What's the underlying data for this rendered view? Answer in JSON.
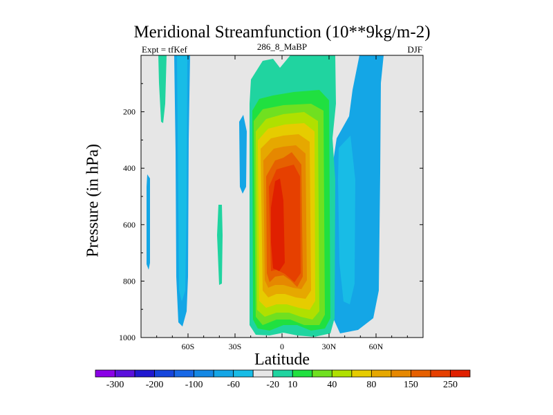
{
  "chart_data": {
    "type": "contour",
    "title": "Meridional Streamfunction (10**9kg/m-2)",
    "left_label": "Expt = tfKef",
    "center_label": "286_8_MaBP",
    "right_label": "DJF",
    "xlabel": "Latitude",
    "ylabel": "Pressure (in hPa)",
    "x_range": [
      -90,
      90
    ],
    "y_range": [
      1000,
      0
    ],
    "y_ticks": [
      "200",
      "400",
      "600",
      "800",
      "1000"
    ],
    "y_tick_values": [
      200,
      400,
      600,
      800,
      1000
    ],
    "x_ticks": [
      "60S",
      "30S",
      "0",
      "30N",
      "60N"
    ],
    "x_tick_values": [
      -60,
      -30,
      0,
      30,
      60
    ],
    "colorbar_labels": [
      "-300",
      "-200",
      "-100",
      "-60",
      "-20",
      "10",
      "40",
      "80",
      "150",
      "250"
    ],
    "colorbar_colors": [
      "#8a00e6",
      "#5a10dc",
      "#2018d0",
      "#1545dc",
      "#1868e6",
      "#1488e4",
      "#14a6e6",
      "#18bce6",
      "#e6e6e6",
      "#20d4a0",
      "#20e040",
      "#70e020",
      "#b0e000",
      "#e6cc00",
      "#e6a800",
      "#e68800",
      "#e66000",
      "#e64000",
      "#e02000"
    ],
    "background_color": "#e6e6e6",
    "grid": false,
    "features": [
      {
        "name": "nh-hadley-cell",
        "sign": "positive",
        "lat_range": [
          -12,
          22
        ],
        "pressure_range": [
          20,
          1000
        ],
        "peak": "250+",
        "peak_lat": -4,
        "peak_pressure": 600
      },
      {
        "name": "sh-ferrel-cell",
        "sign": "negative",
        "lat_range": [
          -67,
          -57
        ],
        "pressure_range": [
          0,
          970
        ],
        "peak": "-60"
      },
      {
        "name": "nh-ferrel-cell",
        "sign": "negative",
        "lat_range": [
          31,
          52
        ],
        "pressure_range": [
          0,
          980
        ],
        "peak": "-60"
      },
      {
        "name": "nh-polar-cell",
        "sign": "negative",
        "lat_range": [
          48,
          58
        ],
        "pressure_range": [
          0,
          300
        ],
        "peak": "-20"
      }
    ]
  }
}
